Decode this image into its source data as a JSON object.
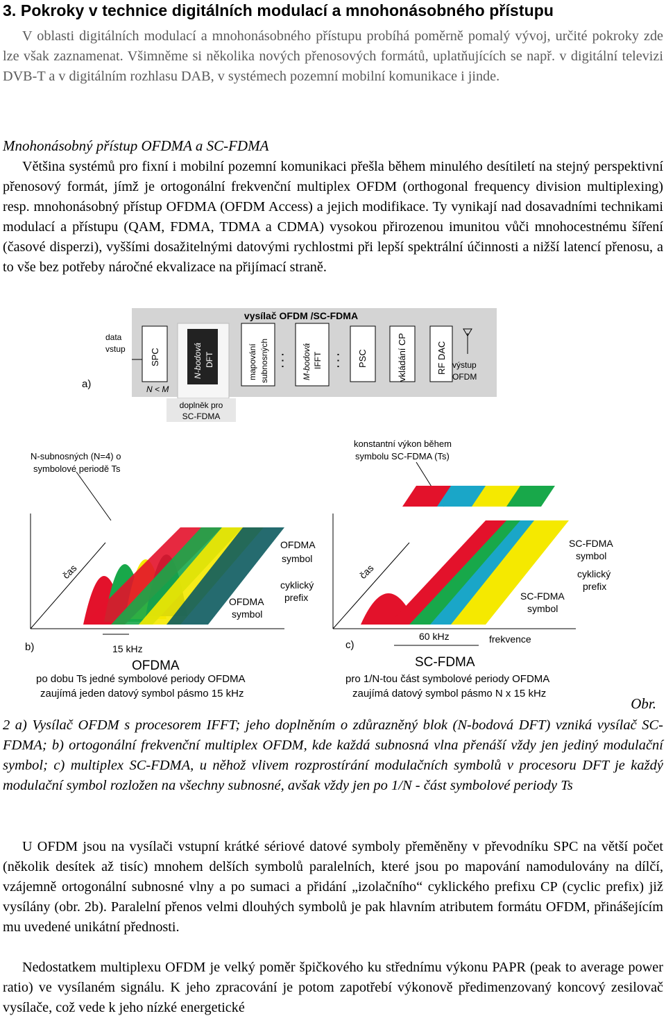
{
  "heading": "3. Pokroky v technice digitálních modulací a mnohonásobného přístupu",
  "intro": [
    "V oblasti digitálních modulací a mnohonásobného přístupu probíhá poměrně pomalý vývoj, určité pokroky zde lze však zaznamenat. Všimněme si několika nových přenosových formátů, uplatňujících se např. v digitální televizi DVB-T a v digitálním rozhlasu DAB, v systémech pozemní mobilní komunikace i jinde."
  ],
  "subheading": "Mnohonásobný přístup OFDMA a SC-FDMA",
  "para1": "Většina systémů pro fixní i mobilní pozemní komunikaci přešla během minulého desítiletí na stejný perspektivní přenosový formát, jímž je ortogonální frekvenční multiplex OFDM (orthogonal frequency division multiplexing) resp. mnohonásobný přístup OFDMA (OFDM Access) a jejich modifikace. Ty vynikají nad dosavadními technikami modulací a přístupu (QAM, FDMA, TDMA a CDMA) vysokou přirozenou imunitou vůči mnohocestnému šíření (časové disperzi), vyššími dosažitelnými datovými rychlostmi při lepší spektrální účinnosti a nižší latencí přenosu, a to vše bez potřeby náročné ekvalizace na přijímací straně.",
  "figure": {
    "tx_title": "vysílač OFDM /SC-FDMA",
    "label_a": "a)",
    "label_b": "b)",
    "label_c": "c)",
    "data_in_1": "data",
    "data_in_2": "vstup",
    "spc": "SPC",
    "n_lt_m": "N < M",
    "dft_1": "N-bodová",
    "dft_2": "DFT",
    "map_1": "mapování",
    "map_2": "subnosných",
    "ifft_1": "M-bodová",
    "ifft_2": "IFFT",
    "psc": "PSC",
    "cp": "vkládání CP",
    "rfdac": "RF DAC",
    "out_1": "výstup",
    "out_2": "OFDM",
    "addon_1": "doplněk pro",
    "addon_2": "SC-FDMA",
    "dots": "· · ·",
    "b_note_1": "N-subnosných (N=4) o",
    "b_note_2": "symbolové periodě Ts",
    "c_note_1": "konstantní výkon během",
    "c_note_2": "symbolu SC-FDMA (Ts)",
    "cas": "čas",
    "ofdma_symbol_1": "OFDMA",
    "ofdma_symbol_2": "symbol",
    "cyclic_1": "cyklický",
    "cyclic_2": "prefix",
    "ofdma_symbol_b_1": "OFDMA",
    "ofdma_symbol_b_2": "symbol",
    "khz15": "15 kHz",
    "ofdma_title": "OFDMA",
    "b_desc_1": "po dobu Ts  jedné symbolové periody OFDMA",
    "b_desc_2": "zaujímá jeden datový symbol pásmo 15 kHz",
    "scfdma_symbol_1": "SC-FDMA",
    "scfdma_symbol_2": "symbol",
    "cyclic_c_1": "cyklický",
    "cyclic_c_2": "prefix",
    "scfdma_symbol_b_1": "SC-FDMA",
    "scfdma_symbol_b_2": "symbol",
    "khz60": "60 kHz",
    "frekvence": "frekvence",
    "scfdma_title": "SC-FDMA",
    "c_desc_1": "pro 1/N-tou část symbolové periody OFDMA",
    "c_desc_2": "zaujímá datový symbol pásmo N x 15 kHz"
  },
  "obr": "Obr.",
  "caption": "2 a) Vysílač OFDM s procesorem IFFT; jeho doplněním o zdůrazněný blok (N-bodová DFT) vzniká vysílač SC-FDMA; b) ortogonální frekvenční multiplex OFDM, kde každá subnosná vlna přenáší vždy jen jediný modulační symbol; c) multiplex SC-FDMA, u něhož vlivem rozprostírání modulačních symbolů v procesoru DFT je každý modulační symbol rozložen na všechny subnosné, avšak vždy jen po 1/N - část symbolové periody Ts",
  "para2": "U OFDM jsou na vysílači vstupní krátké sériové datové symboly přeměněny v převodníku SPC na větší počet (několik desítek až tisíc) mnohem delších symbolů paralelních, které jsou po mapování namodulovány na dílčí, vzájemně ortogonální subnosné vlny a po sumaci a přidání „izolačního“ cyklického prefixu CP (cyclic prefix) již vysílány (obr. 2b). Paralelní přenos velmi dlouhých symbolů je pak hlavním atributem formátu OFDM, přinášejícím mu uvedené unikátní přednosti.",
  "para3": "Nedostatkem multiplexu OFDM je velký poměr špičkového ku střednímu výkonu PAPR (peak to average power ratio) ve vysílaném signálu. K jeho zpracování je potom zapotřebí výkonově předimenzovaný koncový zesilovač vysílače, což vede k jeho nízké energetické",
  "colors": {
    "red": "#e3122b",
    "green": "#18a84a",
    "yellow": "#f5e900",
    "teal": "#0d5b5f",
    "cyan": "#1aa6c8",
    "gray_panel": "#d4d4d4"
  }
}
